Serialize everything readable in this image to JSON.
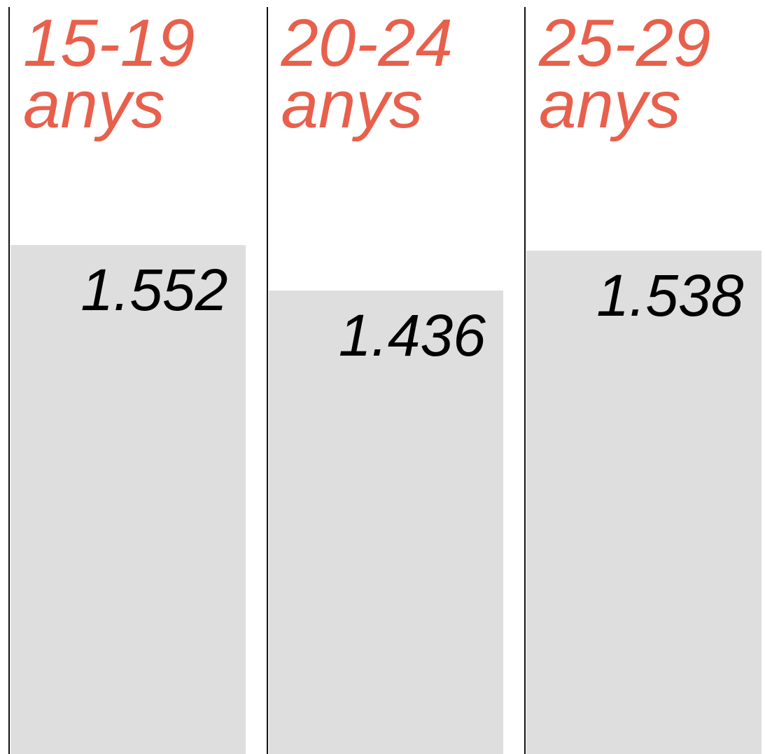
{
  "chart_data": {
    "type": "bar",
    "categories": [
      "15-19 anys",
      "20-24 anys",
      "25-29 anys"
    ],
    "values": [
      1.552,
      1.436,
      1.538
    ],
    "color": "#dedede",
    "label_color": "#e8604c",
    "ylim": [
      0.2545,
      2.177
    ]
  }
}
